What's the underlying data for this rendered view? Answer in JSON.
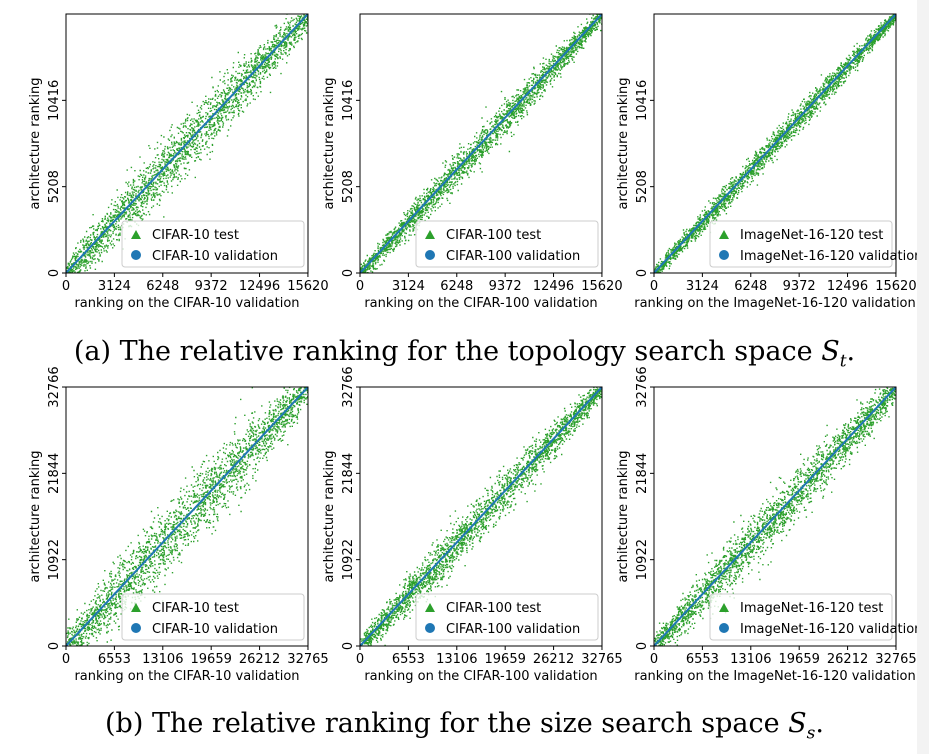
{
  "captions": {
    "a": {
      "text": "(a) The relative ranking for the topology search space ",
      "symbol": "S",
      "sub": "t",
      "end": "."
    },
    "b": {
      "text": "(b) The relative ranking for the size search space ",
      "symbol": "S",
      "sub": "s",
      "end": "."
    }
  },
  "colors": {
    "test": "#2ca02c",
    "validation": "#1f77b4",
    "frame": "#000000"
  },
  "chart_data": [
    {
      "type": "scatter",
      "row": 0,
      "col": 0,
      "title": "",
      "xlabel": "ranking on the CIFAR-10 validation",
      "ylabel": "architecture ranking",
      "xlim": [
        0,
        15625
      ],
      "ylim": [
        0,
        15625
      ],
      "xticks": [
        0,
        3124,
        6248,
        9372,
        12496,
        15620
      ],
      "yticks": [
        0,
        5208,
        10416
      ],
      "legend": [
        "CIFAR-10 test",
        "CIFAR-10 validation"
      ],
      "legend_loc": "lower-right",
      "series": [
        {
          "name": "CIFAR-10 test",
          "marker": "triangle",
          "spread": 0.1
        },
        {
          "name": "CIFAR-10 validation",
          "marker": "circle",
          "relation": "y = x"
        }
      ]
    },
    {
      "type": "scatter",
      "row": 0,
      "col": 1,
      "title": "",
      "xlabel": "ranking on the CIFAR-100 validation",
      "ylabel": "architecture ranking",
      "xlim": [
        0,
        15625
      ],
      "ylim": [
        0,
        15625
      ],
      "xticks": [
        0,
        3124,
        6248,
        9372,
        12496,
        15620
      ],
      "yticks": [
        0,
        5208,
        10416
      ],
      "legend": [
        "CIFAR-100 test",
        "CIFAR-100 validation"
      ],
      "legend_loc": "lower-right",
      "series": [
        {
          "name": "CIFAR-100 test",
          "marker": "triangle",
          "spread": 0.06
        },
        {
          "name": "CIFAR-100 validation",
          "marker": "circle",
          "relation": "y = x"
        }
      ]
    },
    {
      "type": "scatter",
      "row": 0,
      "col": 2,
      "title": "",
      "xlabel": "ranking on the ImageNet-16-120 validation",
      "ylabel": "architecture ranking",
      "xlim": [
        0,
        15625
      ],
      "ylim": [
        0,
        15625
      ],
      "xticks": [
        0,
        3124,
        6248,
        9372,
        12496,
        15620
      ],
      "yticks": [
        0,
        5208,
        10416
      ],
      "legend": [
        "ImageNet-16-120 test",
        "ImageNet-16-120 validation"
      ],
      "legend_loc": "lower-right",
      "series": [
        {
          "name": "ImageNet-16-120 test",
          "marker": "triangle",
          "spread": 0.045
        },
        {
          "name": "ImageNet-16-120 validation",
          "marker": "circle",
          "relation": "y = x"
        }
      ]
    },
    {
      "type": "scatter",
      "row": 1,
      "col": 0,
      "title": "",
      "xlabel": "ranking on the CIFAR-10 validation",
      "ylabel": "architecture ranking",
      "xlim": [
        0,
        32768
      ],
      "ylim": [
        0,
        32768
      ],
      "xticks": [
        0,
        6553,
        13106,
        19659,
        26212,
        32765
      ],
      "yticks": [
        0,
        10922,
        21844,
        32766
      ],
      "legend": [
        "CIFAR-10 test",
        "CIFAR-10 validation"
      ],
      "legend_loc": "lower-right",
      "series": [
        {
          "name": "CIFAR-10 test",
          "marker": "triangle",
          "spread": 0.13
        },
        {
          "name": "CIFAR-10 validation",
          "marker": "circle",
          "relation": "y = x"
        }
      ]
    },
    {
      "type": "scatter",
      "row": 1,
      "col": 1,
      "title": "",
      "xlabel": "ranking on the CIFAR-100 validation",
      "ylabel": "architecture ranking",
      "xlim": [
        0,
        32768
      ],
      "ylim": [
        0,
        32768
      ],
      "xticks": [
        0,
        6553,
        13106,
        19659,
        26212,
        32765
      ],
      "yticks": [
        0,
        10922,
        21844,
        32766
      ],
      "legend": [
        "CIFAR-100 test",
        "CIFAR-100 validation"
      ],
      "legend_loc": "lower-right",
      "series": [
        {
          "name": "CIFAR-100 test",
          "marker": "triangle",
          "spread": 0.075
        },
        {
          "name": "CIFAR-100 validation",
          "marker": "circle",
          "relation": "y = x"
        }
      ]
    },
    {
      "type": "scatter",
      "row": 1,
      "col": 2,
      "title": "",
      "xlabel": "ranking on the ImageNet-16-120 validation",
      "ylabel": "architecture ranking",
      "xlim": [
        0,
        32768
      ],
      "ylim": [
        0,
        32768
      ],
      "xticks": [
        0,
        6553,
        13106,
        19659,
        26212,
        32765
      ],
      "yticks": [
        0,
        10922,
        21844,
        32766
      ],
      "legend": [
        "ImageNet-16-120 test",
        "ImageNet-16-120 validation"
      ],
      "legend_loc": "lower-right",
      "series": [
        {
          "name": "ImageNet-16-120 test",
          "marker": "triangle",
          "spread": 0.09
        },
        {
          "name": "ImageNet-16-120 validation",
          "marker": "circle",
          "relation": "y = x"
        }
      ]
    }
  ]
}
